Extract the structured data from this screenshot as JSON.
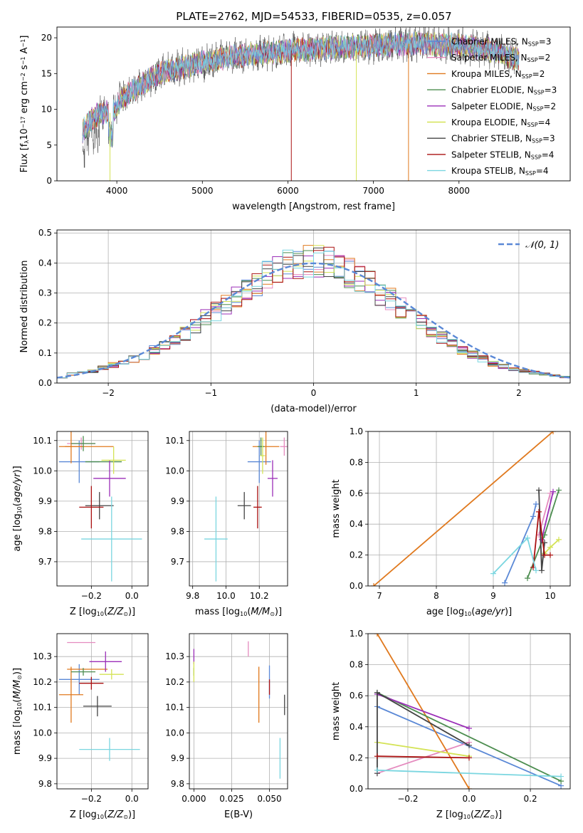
{
  "figure": {
    "title": "PLATE=2762, MJD=54533, FIBERID=0535, z=0.057"
  },
  "series": [
    {
      "name": "Chabrier MILES, N_SSP=3",
      "name_main": "Chabrier MILES, N",
      "name_sub": "SSP",
      "name_tail": "=3",
      "color": "#5a88d6"
    },
    {
      "name": "Salpeter MILES, N_SSP=2",
      "name_main": "Salpeter MILES, N",
      "name_sub": "SSP",
      "name_tail": "=2",
      "color": "#e58bbf"
    },
    {
      "name": "Kroupa MILES, N_SSP=2",
      "name_main": "Kroupa MILES, N",
      "name_sub": "SSP",
      "name_tail": "=2",
      "color": "#e0791e"
    },
    {
      "name": "Chabrier ELODIE, N_SSP=3",
      "name_main": "Chabrier ELODIE, N",
      "name_sub": "SSP",
      "name_tail": "=3",
      "color": "#4c8d4f"
    },
    {
      "name": "Salpeter ELODIE, N_SSP=2",
      "name_main": "Salpeter ELODIE, N",
      "name_sub": "SSP",
      "name_tail": "=2",
      "color": "#9b2fb8"
    },
    {
      "name": "Kroupa ELODIE, N_SSP=4",
      "name_main": "Kroupa ELODIE, N",
      "name_sub": "SSP",
      "name_tail": "=4",
      "color": "#d4e356"
    },
    {
      "name": "Chabrier STELIB, N_SSP=3",
      "name_main": "Chabrier STELIB, N",
      "name_sub": "SSP",
      "name_tail": "=3",
      "color": "#444444"
    },
    {
      "name": "Salpeter STELIB, N_SSP=4",
      "name_main": "Salpeter STELIB, N",
      "name_sub": "SSP",
      "name_tail": "=4",
      "color": "#aa1111"
    },
    {
      "name": "Kroupa STELIB, N_SSP=4",
      "name_main": "Kroupa STELIB, N",
      "name_sub": "SSP",
      "name_tail": "=4",
      "color": "#7ad6e0"
    }
  ],
  "chart_data": [
    {
      "id": "spectrum",
      "type": "line",
      "xlabel": "wavelength [Angstrom, rest frame]",
      "ylabel": "Flux [f_λ 10^-17 erg cm^-2 s^-1 A^-1]",
      "xlim": [
        3300,
        9300
      ],
      "ylim": [
        0,
        21.5
      ],
      "xticks": [
        4000,
        5000,
        6000,
        7000,
        8000
      ],
      "yticks": [
        0,
        5,
        10,
        15,
        20
      ],
      "grid": false,
      "legend": "right",
      "x_range": [
        3600,
        8700
      ],
      "continuum": [
        [
          3600,
          7.0
        ],
        [
          3700,
          8.5
        ],
        [
          3800,
          9.5
        ],
        [
          3950,
          9.5
        ],
        [
          4050,
          11.5
        ],
        [
          4300,
          13.5
        ],
        [
          4500,
          15.0
        ],
        [
          4800,
          16.0
        ],
        [
          5000,
          16.5
        ],
        [
          5200,
          17.0
        ],
        [
          5500,
          17.6
        ],
        [
          6000,
          18.2
        ],
        [
          6500,
          18.6
        ],
        [
          7000,
          18.9
        ],
        [
          7500,
          19.2
        ],
        [
          8000,
          19.0
        ],
        [
          8400,
          18.2
        ],
        [
          8700,
          17.0
        ]
      ],
      "features": [
        {
          "series": 7,
          "x": 6040,
          "y": 0
        },
        {
          "series": 5,
          "x": 3920,
          "y": 0
        },
        {
          "series": 5,
          "x": 6800,
          "y": 0
        },
        {
          "series": 2,
          "x": 7410,
          "y": 0
        }
      ]
    },
    {
      "id": "residual-histogram",
      "type": "histogram",
      "xlabel": "(data-model)/error",
      "ylabel": "Normed distribution",
      "xlim": [
        -2.5,
        2.5
      ],
      "ylim": [
        0,
        0.51
      ],
      "xticks": [
        -2,
        -1,
        0,
        1,
        2
      ],
      "yticks": [
        0.0,
        0.1,
        0.2,
        0.3,
        0.4,
        0.5
      ],
      "grid": true,
      "legend": "top-right",
      "reference": {
        "name": "𝒩(0, 1)",
        "mean": 0,
        "std": 1,
        "color": "#5a88d6"
      },
      "bins": 50,
      "density": [
        0.02,
        0.03,
        0.035,
        0.04,
        0.05,
        0.06,
        0.065,
        0.08,
        0.09,
        0.11,
        0.125,
        0.145,
        0.165,
        0.19,
        0.215,
        0.24,
        0.26,
        0.29,
        0.31,
        0.33,
        0.36,
        0.38,
        0.39,
        0.4,
        0.41,
        0.405,
        0.4,
        0.38,
        0.365,
        0.35,
        0.33,
        0.3,
        0.28,
        0.25,
        0.22,
        0.2,
        0.17,
        0.15,
        0.13,
        0.11,
        0.095,
        0.08,
        0.065,
        0.055,
        0.045,
        0.04,
        0.035,
        0.03,
        0.025,
        0.02
      ]
    },
    {
      "id": "age-vs-z",
      "type": "errorbar",
      "xlabel": "Z [log10(Z/Z☉)]",
      "ylabel": "age [log10(age/yr)]",
      "xlim": [
        -0.37,
        0.08
      ],
      "ylim": [
        9.62,
        10.13
      ],
      "xticks": [
        -0.2,
        0.0
      ],
      "yticks": [
        9.7,
        9.8,
        9.9,
        10.0,
        10.1
      ],
      "grid": true,
      "points": [
        {
          "series": 0,
          "x": -0.26,
          "y": 10.03,
          "xerr": 0.1,
          "yerr": 0.07
        },
        {
          "series": 1,
          "x": -0.25,
          "y": 10.09,
          "xerr": 0.07,
          "yerr": 0.02
        },
        {
          "series": 2,
          "x": -0.3,
          "y": 10.08,
          "xerr": 0.06,
          "yerr": 0.055
        },
        {
          "series": 2,
          "x": -0.21,
          "y": 10.08,
          "xerr": 0.12,
          "yerr": 0.0
        },
        {
          "series": 3,
          "x": -0.24,
          "y": 10.09,
          "xerr": 0.06,
          "yerr": 0.025
        },
        {
          "series": 3,
          "x": -0.14,
          "y": 10.03,
          "xerr": 0.09,
          "yerr": 0.0
        },
        {
          "series": 4,
          "x": -0.11,
          "y": 9.975,
          "xerr": 0.08,
          "yerr": 0.06
        },
        {
          "series": 5,
          "x": -0.09,
          "y": 10.035,
          "xerr": 0.06,
          "yerr": 0.045
        },
        {
          "series": 6,
          "x": -0.16,
          "y": 9.885,
          "xerr": 0.07,
          "yerr": 0.045
        },
        {
          "series": 7,
          "x": -0.2,
          "y": 9.88,
          "xerr": 0.06,
          "yerr": 0.07
        },
        {
          "series": 8,
          "x": -0.1,
          "y": 9.775,
          "xerr": 0.15,
          "yerr": 0.14
        }
      ]
    },
    {
      "id": "age-vs-mass",
      "type": "errorbar",
      "xlabel": "mass [log10(M/M☉)]",
      "ylabel": "",
      "xlim": [
        9.78,
        10.37
      ],
      "ylim": [
        9.62,
        10.13
      ],
      "xticks": [
        9.8,
        10.0,
        10.2
      ],
      "yticks": [
        9.7,
        9.8,
        9.9,
        10.0,
        10.1
      ],
      "grid": true,
      "points": [
        {
          "series": 0,
          "x": 10.2,
          "y": 10.03,
          "xerr": 0.07,
          "yerr": 0.07
        },
        {
          "series": 1,
          "x": 10.35,
          "y": 10.08,
          "xerr": 0.025,
          "yerr": 0.03
        },
        {
          "series": 2,
          "x": 10.24,
          "y": 10.08,
          "xerr": 0.08,
          "yerr": 0.06
        },
        {
          "series": 3,
          "x": 10.21,
          "y": 10.08,
          "xerr": 0.02,
          "yerr": 0.03
        },
        {
          "series": 4,
          "x": 10.28,
          "y": 9.975,
          "xerr": 0.03,
          "yerr": 0.06
        },
        {
          "series": 5,
          "x": 10.22,
          "y": 10.05,
          "xerr": 0.015,
          "yerr": 0.06
        },
        {
          "series": 6,
          "x": 10.11,
          "y": 9.885,
          "xerr": 0.04,
          "yerr": 0.045
        },
        {
          "series": 7,
          "x": 10.19,
          "y": 9.88,
          "xerr": 0.025,
          "yerr": 0.07
        },
        {
          "series": 8,
          "x": 9.94,
          "y": 9.775,
          "xerr": 0.07,
          "yerr": 0.14
        }
      ]
    },
    {
      "id": "weight-vs-age",
      "type": "line",
      "xlabel": "age [log10(age/yr)]",
      "ylabel": "mass weight",
      "xlim": [
        6.8,
        10.35
      ],
      "ylim": [
        0,
        1.0
      ],
      "xticks": [
        7,
        8,
        9,
        10
      ],
      "yticks": [
        0.0,
        0.2,
        0.4,
        0.6,
        0.8,
        1.0
      ],
      "grid": true,
      "series_points": [
        {
          "series": 0,
          "points": [
            [
              9.2,
              0.02
            ],
            [
              9.7,
              0.45
            ],
            [
              9.75,
              0.53
            ]
          ]
        },
        {
          "series": 1,
          "points": [
            [
              9.8,
              0.33
            ],
            [
              10.0,
              0.6
            ]
          ]
        },
        {
          "series": 2,
          "points": [
            [
              6.9,
              0.0
            ],
            [
              10.05,
              1.0
            ]
          ]
        },
        {
          "series": 3,
          "points": [
            [
              9.6,
              0.05
            ],
            [
              9.9,
              0.33
            ],
            [
              10.15,
              0.62
            ]
          ]
        },
        {
          "series": 4,
          "points": [
            [
              9.85,
              0.3
            ],
            [
              10.05,
              0.61
            ]
          ]
        },
        {
          "series": 5,
          "points": [
            [
              9.9,
              0.21
            ],
            [
              10.0,
              0.25
            ],
            [
              10.15,
              0.3
            ]
          ]
        },
        {
          "series": 6,
          "points": [
            [
              9.8,
              0.62
            ],
            [
              9.85,
              0.1
            ],
            [
              9.9,
              0.28
            ]
          ]
        },
        {
          "series": 7,
          "points": [
            [
              9.7,
              0.12
            ],
            [
              9.8,
              0.48
            ],
            [
              9.9,
              0.2
            ],
            [
              10.0,
              0.2
            ]
          ]
        },
        {
          "series": 8,
          "points": [
            [
              9.0,
              0.08
            ],
            [
              9.6,
              0.31
            ],
            [
              9.75,
              0.1
            ]
          ]
        }
      ]
    },
    {
      "id": "mass-vs-z",
      "type": "errorbar",
      "xlabel": "Z [log10(Z/Z☉)]",
      "ylabel": "mass [log10(M/M☉)]",
      "xlim": [
        -0.37,
        0.08
      ],
      "ylim": [
        9.78,
        10.39
      ],
      "xticks": [
        -0.2,
        0.0
      ],
      "yticks": [
        9.8,
        9.9,
        10.0,
        10.1,
        10.2,
        10.3
      ],
      "grid": true,
      "points": [
        {
          "series": 0,
          "x": -0.26,
          "y": 10.21,
          "xerr": 0.1,
          "yerr": 0.06
        },
        {
          "series": 1,
          "x": -0.25,
          "y": 10.355,
          "xerr": 0.07,
          "yerr": 0.0
        },
        {
          "series": 2,
          "x": -0.3,
          "y": 10.15,
          "xerr": 0.06,
          "yerr": 0.11
        },
        {
          "series": 2,
          "x": -0.22,
          "y": 10.25,
          "xerr": 0.1,
          "yerr": 0.0
        },
        {
          "series": 3,
          "x": -0.24,
          "y": 10.24,
          "xerr": 0.06,
          "yerr": 0.015
        },
        {
          "series": 4,
          "x": -0.13,
          "y": 10.28,
          "xerr": 0.08,
          "yerr": 0.04
        },
        {
          "series": 5,
          "x": -0.1,
          "y": 10.23,
          "xerr": 0.06,
          "yerr": 0.02
        },
        {
          "series": 6,
          "x": -0.17,
          "y": 10.105,
          "xerr": 0.07,
          "yerr": 0.04
        },
        {
          "series": 7,
          "x": -0.2,
          "y": 10.195,
          "xerr": 0.06,
          "yerr": 0.025
        },
        {
          "series": 8,
          "x": -0.11,
          "y": 9.935,
          "xerr": 0.15,
          "yerr": 0.045
        }
      ]
    },
    {
      "id": "mass-vs-ebv",
      "type": "errorbar",
      "xlabel": "E(B-V)",
      "ylabel": "",
      "xlim": [
        -0.003,
        0.062
      ],
      "ylim": [
        9.78,
        10.39
      ],
      "xticks": [
        0.0,
        0.025,
        0.05
      ],
      "xticklabels": [
        "0.000",
        "0.025",
        "0.050"
      ],
      "yticks": [
        9.8,
        9.9,
        10.0,
        10.1,
        10.2,
        10.3
      ],
      "grid": true,
      "points": [
        {
          "series": 0,
          "x": 0.05,
          "y": 10.2,
          "xerr": 0.0,
          "yerr": 0.065
        },
        {
          "series": 1,
          "x": 0.036,
          "y": 10.33,
          "xerr": 0.0,
          "yerr": 0.03
        },
        {
          "series": 2,
          "x": 0.043,
          "y": 10.15,
          "xerr": 0.0,
          "yerr": 0.11
        },
        {
          "series": 3,
          "x": 0.0,
          "y": 10.24,
          "xerr": 0.0,
          "yerr": 0.015
        },
        {
          "series": 4,
          "x": 0.0,
          "y": 10.3,
          "xerr": 0.0,
          "yerr": 0.03
        },
        {
          "series": 5,
          "x": 0.0,
          "y": 10.24,
          "xerr": 0.0,
          "yerr": 0.04
        },
        {
          "series": 6,
          "x": 0.06,
          "y": 10.11,
          "xerr": 0.0,
          "yerr": 0.04
        },
        {
          "series": 7,
          "x": 0.05,
          "y": 10.18,
          "xerr": 0.0,
          "yerr": 0.03
        },
        {
          "series": 8,
          "x": 0.057,
          "y": 9.9,
          "xerr": 0.0,
          "yerr": 0.08
        }
      ]
    },
    {
      "id": "weight-vs-z",
      "type": "line",
      "xlabel": "Z [log10(Z/Z☉)]",
      "ylabel": "mass weight",
      "xlim": [
        -0.33,
        0.33
      ],
      "ylim": [
        0,
        1.0
      ],
      "xticks": [
        -0.2,
        0.0,
        0.2
      ],
      "yticks": [
        0.0,
        0.2,
        0.4,
        0.6,
        0.8,
        1.0
      ],
      "grid": true,
      "series_points": [
        {
          "series": 0,
          "points": [
            [
              -0.3,
              0.53
            ],
            [
              0.3,
              0.02
            ]
          ]
        },
        {
          "series": 1,
          "points": [
            [
              -0.3,
              0.1
            ],
            [
              0.0,
              0.3
            ]
          ]
        },
        {
          "series": 2,
          "points": [
            [
              -0.3,
              1.0
            ],
            [
              0.0,
              0.0
            ]
          ]
        },
        {
          "series": 3,
          "points": [
            [
              -0.3,
              0.62
            ],
            [
              0.3,
              0.05
            ]
          ]
        },
        {
          "series": 4,
          "points": [
            [
              -0.3,
              0.61
            ],
            [
              0.0,
              0.39
            ]
          ]
        },
        {
          "series": 5,
          "points": [
            [
              -0.3,
              0.3
            ],
            [
              0.0,
              0.21
            ]
          ]
        },
        {
          "series": 6,
          "points": [
            [
              -0.3,
              0.1
            ],
            [
              -0.3,
              0.62
            ],
            [
              0.0,
              0.28
            ]
          ]
        },
        {
          "series": 7,
          "points": [
            [
              -0.3,
              0.21
            ],
            [
              0.0,
              0.2
            ]
          ]
        },
        {
          "series": 8,
          "points": [
            [
              -0.3,
              0.12
            ],
            [
              0.3,
              0.08
            ]
          ]
        }
      ]
    }
  ]
}
